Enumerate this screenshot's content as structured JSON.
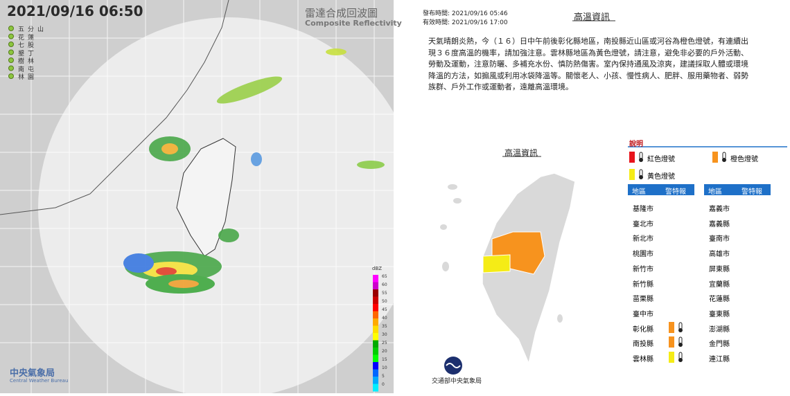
{
  "radar": {
    "timestamp": "2021/09/16 06:50",
    "title": "雷達合成回波圖",
    "subtitle": "Composite Reflectivity",
    "stations": [
      "五分山",
      "花蓮",
      "七股",
      "墾丁",
      "樹林",
      "南屯",
      "林園"
    ],
    "scale_unit": "dBZ",
    "scale_ticks": [
      65,
      60,
      55,
      50,
      45,
      40,
      35,
      30,
      25,
      20,
      15,
      10,
      5,
      0
    ],
    "logo": "中央氣象局",
    "logo_en": "Central Weather Bureau"
  },
  "info": {
    "issued": "發布時間: 2021/09/16 05:46",
    "valid": "有效時間: 2021/09/16 17:00",
    "title": "高溫資訊",
    "text": "天氣晴朗炎熱，今（１６）日中午前後彰化縣地區，南投縣近山區或河谷為橙色燈號，有連續出現３６度高溫的機率，請加強注意。雲林縣地區為黃色燈號，請注意，避免非必要的戶外活動、勞動及運動，注意防曬、多補充水份、慎防熱傷害。室內保持通風及涼爽，建議採取人體或環境降溫的方法，如搧風或利用冰袋降溫等。關懷老人、小孩、慢性病人、肥胖、服用藥物者、弱勢族群、戶外工作或運動者，遠離高溫環境。",
    "map_title": "高溫資訊",
    "legend_title": "說明",
    "legend": [
      {
        "label": "紅色燈號",
        "color": "#e8141c"
      },
      {
        "label": "橙色燈號",
        "color": "#f7931e"
      },
      {
        "label": "黃色燈號",
        "color": "#f5ec16"
      }
    ],
    "headers": [
      "地區",
      "警特報"
    ],
    "left_counties": [
      {
        "name": "基隆市"
      },
      {
        "name": "臺北市"
      },
      {
        "name": "新北市"
      },
      {
        "name": "桃園市"
      },
      {
        "name": "新竹市"
      },
      {
        "name": "新竹縣"
      },
      {
        "name": "苗栗縣"
      },
      {
        "name": "臺中市"
      },
      {
        "name": "彰化縣",
        "color": "#f7931e"
      },
      {
        "name": "南投縣",
        "color": "#f7931e"
      },
      {
        "name": "雲林縣",
        "color": "#f5ec16"
      }
    ],
    "right_counties": [
      {
        "name": "嘉義市"
      },
      {
        "name": "嘉義縣"
      },
      {
        "name": "臺南市"
      },
      {
        "name": "高雄市"
      },
      {
        "name": "屏東縣"
      },
      {
        "name": "宜蘭縣"
      },
      {
        "name": "花蓮縣"
      },
      {
        "name": "臺東縣"
      },
      {
        "name": "澎湖縣"
      },
      {
        "name": "金門縣"
      },
      {
        "name": "連江縣"
      }
    ],
    "footer": "交通部中央氣象局"
  }
}
